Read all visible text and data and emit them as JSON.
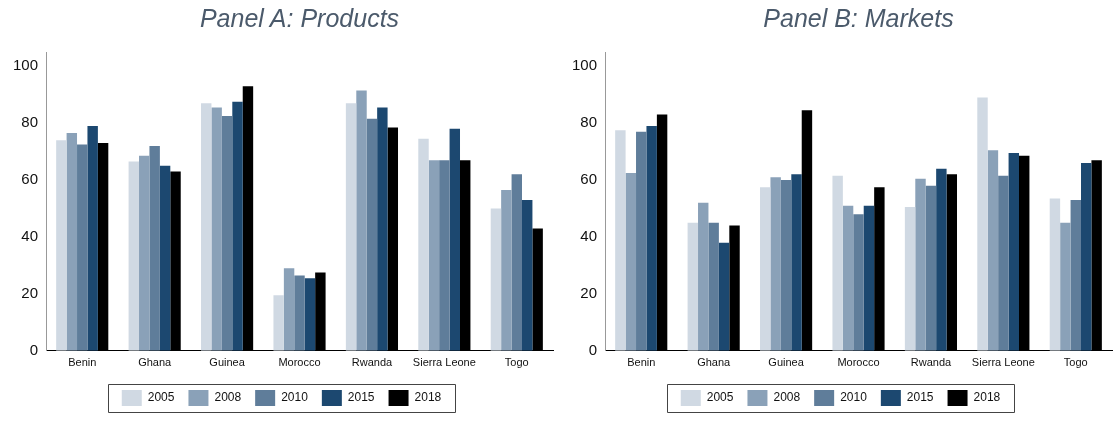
{
  "chart_data": [
    {
      "type": "bar",
      "title": "Panel A: Products",
      "categories": [
        "Benin",
        "Ghana",
        "Guinea",
        "Morocco",
        "Rwanda",
        "Sierra Leone",
        "Togo"
      ],
      "series": [
        {
          "name": "2005",
          "color": "#d0d9e3",
          "values": [
            74,
            66.5,
            87,
            19.5,
            87,
            74.5,
            50
          ]
        },
        {
          "name": "2008",
          "color": "#8aa1b8",
          "values": [
            76.5,
            68.5,
            85.5,
            29,
            91.5,
            67,
            56.5
          ]
        },
        {
          "name": "2010",
          "color": "#5f7d9a",
          "values": [
            72.5,
            72,
            82.5,
            26.5,
            81.5,
            67,
            62
          ]
        },
        {
          "name": "2015",
          "color": "#1c4870",
          "values": [
            79,
            65,
            87.5,
            25.5,
            85.5,
            78,
            53
          ]
        },
        {
          "name": "2018",
          "color": "#000000",
          "values": [
            73,
            63,
            93,
            27.5,
            78.5,
            67,
            43
          ]
        }
      ],
      "ylim": [
        0,
        105
      ],
      "yticks": [
        0,
        20,
        40,
        60,
        80,
        100
      ],
      "grid": false,
      "legend": "bottom"
    },
    {
      "type": "bar",
      "title": "Panel B: Markets",
      "categories": [
        "Benin",
        "Ghana",
        "Guinea",
        "Morocco",
        "Rwanda",
        "Sierra Leone",
        "Togo"
      ],
      "series": [
        {
          "name": "2005",
          "color": "#d0d9e3",
          "values": [
            77.5,
            45,
            57.5,
            61.5,
            50.5,
            89,
            53.5
          ]
        },
        {
          "name": "2008",
          "color": "#8aa1b8",
          "values": [
            62.5,
            52,
            61,
            51,
            60.5,
            70.5,
            45
          ]
        },
        {
          "name": "2010",
          "color": "#5f7d9a",
          "values": [
            77,
            45,
            60,
            48,
            58,
            61.5,
            53
          ]
        },
        {
          "name": "2015",
          "color": "#1c4870",
          "values": [
            79,
            38,
            62,
            51,
            64,
            69.5,
            66
          ]
        },
        {
          "name": "2018",
          "color": "#000000",
          "values": [
            83,
            44,
            84.5,
            57.5,
            62,
            68.5,
            67
          ]
        }
      ],
      "ylim": [
        0,
        105
      ],
      "yticks": [
        0,
        20,
        40,
        60,
        80,
        100
      ],
      "grid": false,
      "legend": "bottom"
    }
  ]
}
